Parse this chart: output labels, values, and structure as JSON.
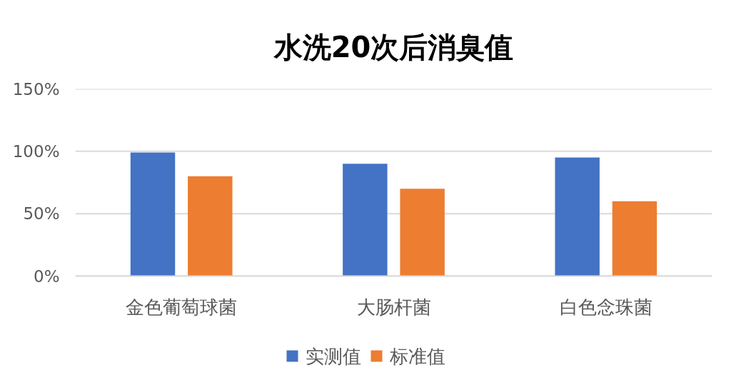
{
  "chart_data": {
    "type": "bar",
    "title": "水洗20次后消臭值",
    "categories": [
      "金色葡萄球菌",
      "大肠杆菌",
      "白色念珠菌"
    ],
    "series": [
      {
        "name": "实测值",
        "color": "#4472c4",
        "values": [
          99,
          90,
          95
        ]
      },
      {
        "name": "标准值",
        "color": "#ed7d31",
        "values": [
          80,
          70,
          60
        ]
      }
    ],
    "ylim": [
      0,
      150
    ],
    "yticks": [
      {
        "value": 0,
        "label": "0%"
      },
      {
        "value": 50,
        "label": "50%"
      },
      {
        "value": 100,
        "label": "100%"
      },
      {
        "value": 150,
        "label": "150%"
      }
    ],
    "grid": "y",
    "legend": "bottom"
  }
}
